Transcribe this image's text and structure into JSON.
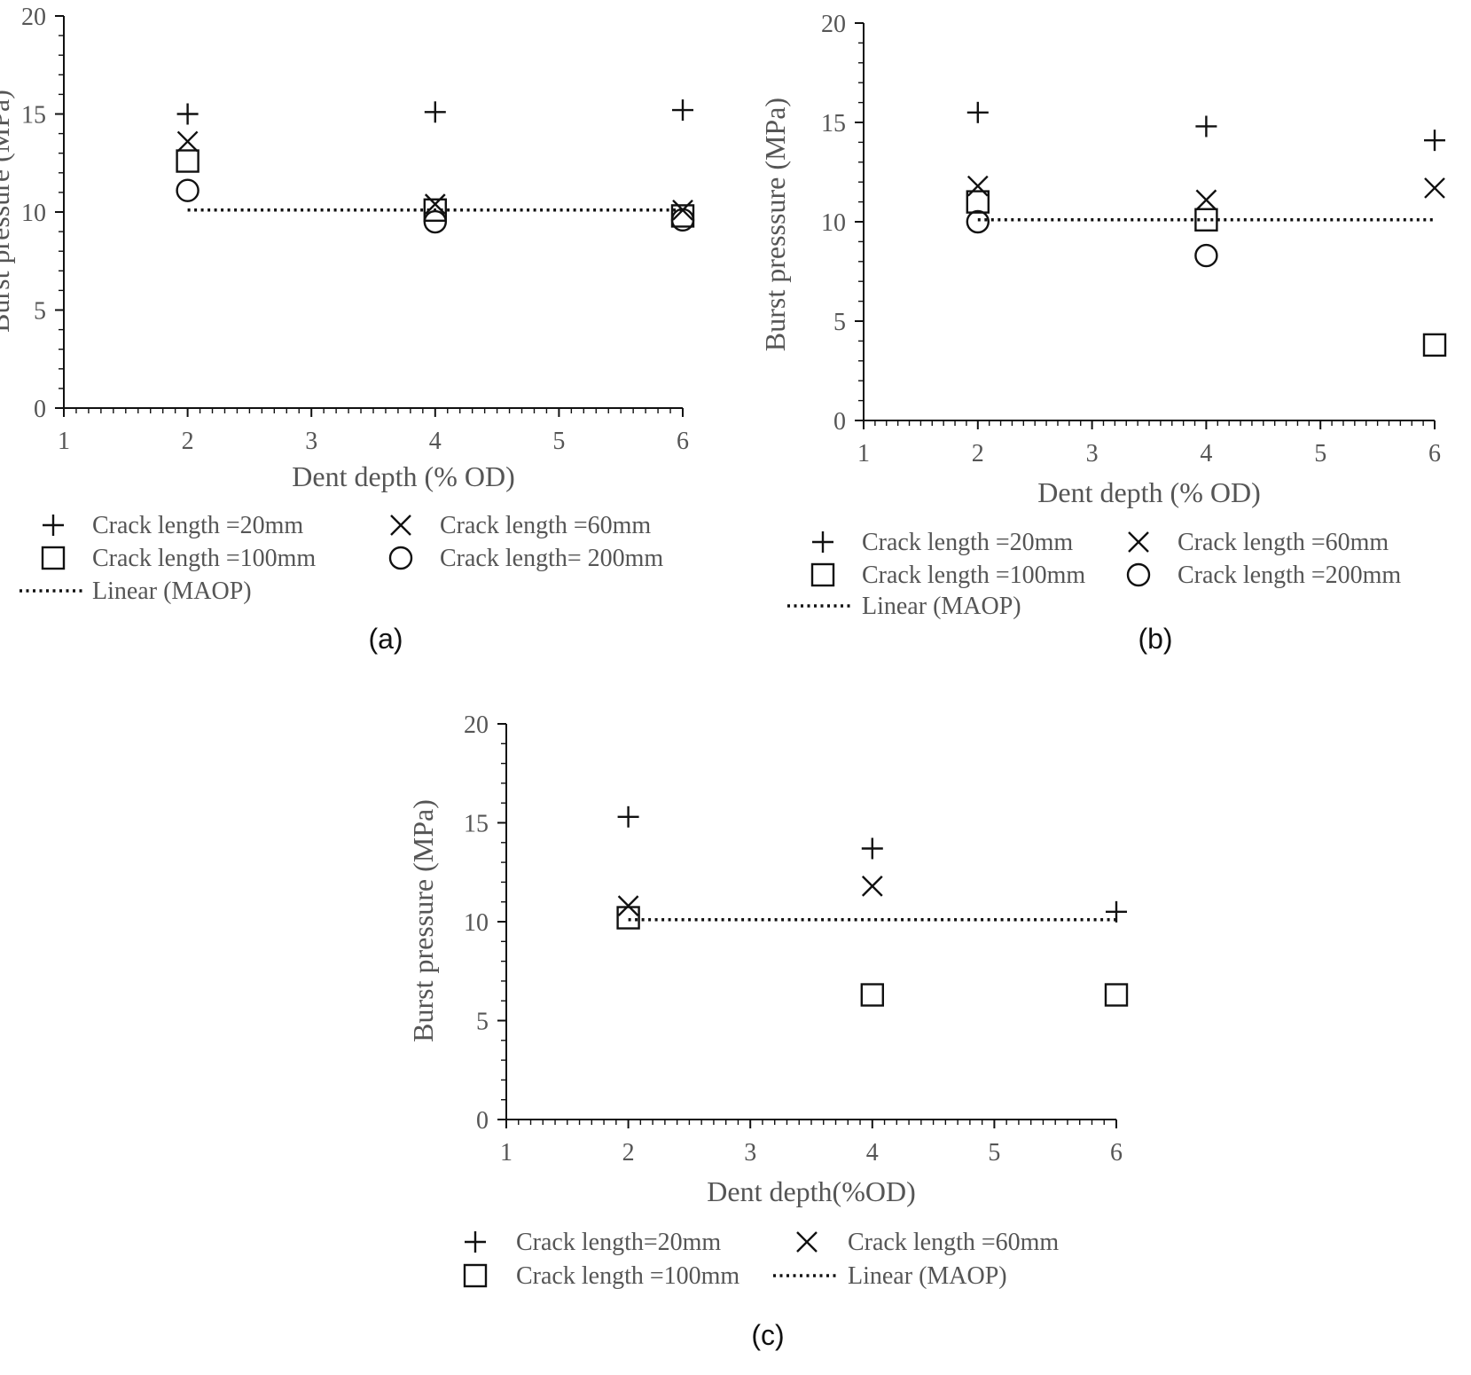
{
  "chart_data": [
    {
      "type": "scatter",
      "panel_label": "(a)",
      "xlabel": "Dent depth (% OD)",
      "ylabel": "Burst pressure (MPa)",
      "xlim": [
        1,
        6
      ],
      "ylim": [
        0,
        20
      ],
      "xticks": [
        "1",
        "2",
        "3",
        "4",
        "5",
        "6"
      ],
      "yticks": [
        "0",
        "5",
        "10",
        "15",
        "20"
      ],
      "grid": false,
      "legend_position": "bottom",
      "series": [
        {
          "name": "Crack length =20mm",
          "marker": "plus",
          "x": [
            2,
            4,
            6
          ],
          "y": [
            15.0,
            15.1,
            15.2
          ]
        },
        {
          "name": "Crack length =60mm",
          "marker": "x",
          "x": [
            2,
            4,
            6
          ],
          "y": [
            13.6,
            10.4,
            10.1
          ]
        },
        {
          "name": "Crack length =100mm",
          "marker": "square",
          "x": [
            2,
            4,
            6
          ],
          "y": [
            12.6,
            10.1,
            9.8
          ]
        },
        {
          "name": "Crack length= 200mm",
          "marker": "circle",
          "x": [
            2,
            4,
            6
          ],
          "y": [
            11.1,
            9.5,
            9.6
          ]
        }
      ],
      "reference_line": {
        "name": "Linear (MAOP)",
        "x": [
          2,
          6
        ],
        "y": [
          10.1,
          10.1
        ]
      }
    },
    {
      "type": "scatter",
      "panel_label": "(b)",
      "xlabel": "Dent depth (% OD)",
      "ylabel": "Burst presssure (MPa)",
      "xlim": [
        1,
        6
      ],
      "ylim": [
        0,
        20
      ],
      "xticks": [
        "1",
        "2",
        "3",
        "4",
        "5",
        "6"
      ],
      "yticks": [
        "0",
        "5",
        "10",
        "15",
        "20"
      ],
      "grid": false,
      "legend_position": "bottom",
      "series": [
        {
          "name": "Crack length =20mm",
          "marker": "plus",
          "x": [
            2,
            4,
            6
          ],
          "y": [
            15.5,
            14.8,
            14.1
          ]
        },
        {
          "name": "Crack length =60mm",
          "marker": "x",
          "x": [
            2,
            4,
            6
          ],
          "y": [
            11.8,
            11.1,
            11.7
          ]
        },
        {
          "name": "Crack length =100mm",
          "marker": "square",
          "x": [
            2,
            4,
            6
          ],
          "y": [
            11.0,
            10.1,
            3.8
          ]
        },
        {
          "name": "Crack length =200mm",
          "marker": "circle",
          "x": [
            2,
            4
          ],
          "y": [
            10.0,
            8.3
          ]
        }
      ],
      "reference_line": {
        "name": "Linear (MAOP)",
        "x": [
          2,
          6
        ],
        "y": [
          10.1,
          10.1
        ]
      }
    },
    {
      "type": "scatter",
      "panel_label": "(c)",
      "xlabel": "Dent depth(%OD)",
      "ylabel": "Burst pressure (MPa)",
      "xlim": [
        1,
        6
      ],
      "ylim": [
        0,
        20
      ],
      "xticks": [
        "1",
        "2",
        "3",
        "4",
        "5",
        "6"
      ],
      "yticks": [
        "0",
        "5",
        "10",
        "15",
        "20"
      ],
      "grid": false,
      "legend_position": "bottom",
      "series": [
        {
          "name": "Crack length=20mm",
          "marker": "plus",
          "x": [
            2,
            4,
            6
          ],
          "y": [
            15.3,
            13.7,
            10.5
          ]
        },
        {
          "name": "Crack length =60mm",
          "marker": "x",
          "x": [
            2,
            4
          ],
          "y": [
            10.8,
            11.8
          ]
        },
        {
          "name": "Crack length =100mm",
          "marker": "square",
          "x": [
            2,
            4,
            6
          ],
          "y": [
            10.2,
            6.3,
            6.3
          ]
        }
      ],
      "reference_line": {
        "name": "Linear (MAOP)",
        "x": [
          2,
          6
        ],
        "y": [
          10.1,
          10.1
        ]
      }
    }
  ]
}
